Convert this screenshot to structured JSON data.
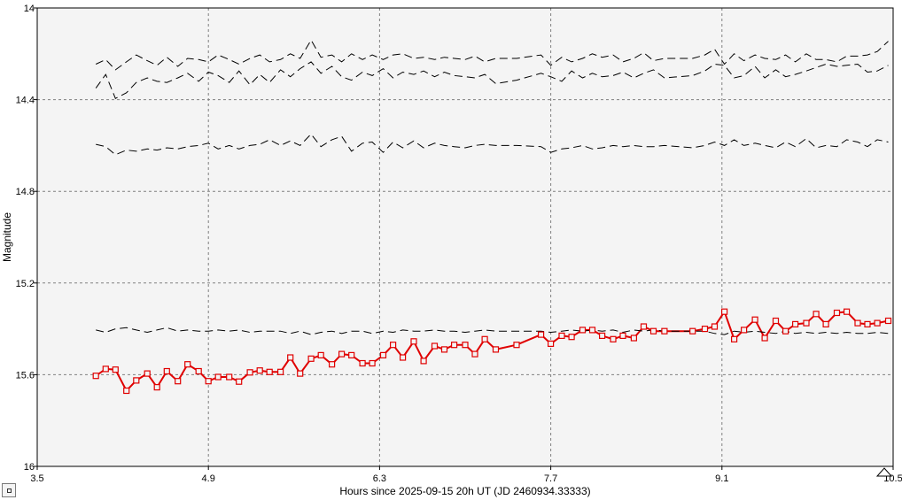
{
  "chart_data": {
    "type": "line",
    "xlabel": "Hours since 2025-09-15 20h UT (JD 2460934.33333)",
    "ylabel": "Magnitude",
    "xlim": [
      3.5,
      10.5
    ],
    "ylim": [
      16,
      14
    ],
    "y_inverted": true,
    "xticks": [
      "3.5",
      "4.9",
      "6.3",
      "7.7",
      "9.1",
      "10.5"
    ],
    "yticks": [
      "14",
      "14.4",
      "14.8",
      "15.2",
      "15.6",
      "16"
    ],
    "grid": true,
    "colors": {
      "target": "#e00000",
      "comparison": "#000000",
      "plot_background": "#f4f4f4",
      "grid": "#808080"
    },
    "series": [
      {
        "role": "target",
        "style": "solid-line-square-markers",
        "x": [
          3.98,
          4.06,
          4.14,
          4.23,
          4.31,
          4.4,
          4.48,
          4.56,
          4.65,
          4.73,
          4.82,
          4.9,
          4.98,
          5.07,
          5.15,
          5.24,
          5.32,
          5.4,
          5.49,
          5.57,
          5.65,
          5.74,
          5.82,
          5.91,
          5.99,
          6.07,
          6.16,
          6.24,
          6.33,
          6.41,
          6.49,
          6.58,
          6.66,
          6.75,
          6.83,
          6.91,
          7.0,
          7.08,
          7.16,
          7.25,
          7.42,
          7.62,
          7.7,
          7.79,
          7.87,
          7.96,
          8.04,
          8.12,
          8.21,
          8.29,
          8.38,
          8.46,
          8.54,
          8.63,
          8.86,
          8.96,
          9.04,
          9.12,
          9.2,
          9.28,
          9.37,
          9.45,
          9.54,
          9.62,
          9.7,
          9.79,
          9.87,
          9.95,
          10.04,
          10.12,
          10.21,
          10.29,
          10.37,
          10.46
        ],
        "y": [
          15.605,
          15.575,
          15.578,
          15.67,
          15.625,
          15.595,
          15.655,
          15.585,
          15.628,
          15.555,
          15.585,
          15.628,
          15.61,
          15.61,
          15.63,
          15.59,
          15.582,
          15.588,
          15.588,
          15.525,
          15.595,
          15.53,
          15.515,
          15.555,
          15.51,
          15.515,
          15.55,
          15.55,
          15.515,
          15.47,
          15.525,
          15.455,
          15.54,
          15.475,
          15.49,
          15.47,
          15.47,
          15.51,
          15.445,
          15.49,
          15.47,
          15.425,
          15.465,
          15.43,
          15.435,
          15.405,
          15.405,
          15.43,
          15.445,
          15.43,
          15.44,
          15.39,
          15.41,
          15.41,
          15.41,
          15.4,
          15.39,
          15.325,
          15.445,
          15.405,
          15.36,
          15.44,
          15.365,
          15.41,
          15.38,
          15.375,
          15.335,
          15.38,
          15.33,
          15.325,
          15.375,
          15.38,
          15.375,
          15.365
        ]
      },
      {
        "role": "comparison",
        "style": "dashed",
        "x": [
          3.98,
          4.06,
          4.14,
          4.23,
          4.31,
          4.4,
          4.48,
          4.56,
          4.65,
          4.73,
          4.82,
          4.9,
          4.98,
          5.07,
          5.15,
          5.24,
          5.32,
          5.4,
          5.49,
          5.57,
          5.65,
          5.74,
          5.82,
          5.91,
          5.99,
          6.07,
          6.16,
          6.24,
          6.33,
          6.41,
          6.49,
          6.58,
          6.66,
          6.75,
          6.83,
          6.91,
          7.0,
          7.08,
          7.16,
          7.25,
          7.42,
          7.62,
          7.7,
          7.79,
          7.87,
          7.96,
          8.04,
          8.12,
          8.21,
          8.29,
          8.38,
          8.46,
          8.54,
          8.63,
          8.86,
          8.96,
          9.04,
          9.12,
          9.2,
          9.28,
          9.37,
          9.45,
          9.54,
          9.62,
          9.7,
          9.79,
          9.87,
          9.95,
          10.04,
          10.12,
          10.21,
          10.29,
          10.37,
          10.46
        ],
        "y": [
          14.245,
          14.225,
          14.27,
          14.235,
          14.205,
          14.23,
          14.25,
          14.215,
          14.255,
          14.22,
          14.225,
          14.235,
          14.205,
          14.225,
          14.245,
          14.22,
          14.205,
          14.235,
          14.225,
          14.2,
          14.22,
          14.14,
          14.215,
          14.205,
          14.235,
          14.2,
          14.225,
          14.205,
          14.225,
          14.205,
          14.2,
          14.22,
          14.215,
          14.225,
          14.215,
          14.22,
          14.225,
          14.21,
          14.235,
          14.22,
          14.22,
          14.205,
          14.25,
          14.215,
          14.235,
          14.22,
          14.2,
          14.215,
          14.205,
          14.235,
          14.22,
          14.195,
          14.23,
          14.22,
          14.22,
          14.205,
          14.18,
          14.245,
          14.2,
          14.23,
          14.205,
          14.22,
          14.225,
          14.205,
          14.235,
          14.2,
          14.225,
          14.225,
          14.235,
          14.21,
          14.21,
          14.205,
          14.19,
          14.145
        ]
      },
      {
        "role": "comparison",
        "style": "dashed",
        "x": [
          3.98,
          4.06,
          4.14,
          4.23,
          4.31,
          4.4,
          4.48,
          4.56,
          4.65,
          4.73,
          4.82,
          4.9,
          4.98,
          5.07,
          5.15,
          5.24,
          5.32,
          5.4,
          5.49,
          5.57,
          5.65,
          5.74,
          5.82,
          5.91,
          5.99,
          6.07,
          6.16,
          6.24,
          6.33,
          6.41,
          6.49,
          6.58,
          6.66,
          6.75,
          6.83,
          6.91,
          7.0,
          7.08,
          7.16,
          7.25,
          7.42,
          7.62,
          7.7,
          7.79,
          7.87,
          7.96,
          8.04,
          8.12,
          8.21,
          8.29,
          8.38,
          8.46,
          8.54,
          8.63,
          8.86,
          8.96,
          9.04,
          9.12,
          9.2,
          9.28,
          9.37,
          9.45,
          9.54,
          9.62,
          9.7,
          9.79,
          9.87,
          9.95,
          10.04,
          10.12,
          10.21,
          10.29,
          10.37,
          10.46
        ],
        "y": [
          14.35,
          14.29,
          14.395,
          14.37,
          14.325,
          14.305,
          14.32,
          14.325,
          14.305,
          14.285,
          14.32,
          14.28,
          14.295,
          14.325,
          14.275,
          14.335,
          14.29,
          14.325,
          14.27,
          14.3,
          14.265,
          14.235,
          14.285,
          14.255,
          14.3,
          14.315,
          14.28,
          14.295,
          14.265,
          14.305,
          14.28,
          14.29,
          14.275,
          14.3,
          14.28,
          14.295,
          14.3,
          14.305,
          14.29,
          14.33,
          14.315,
          14.285,
          14.3,
          14.32,
          14.275,
          14.305,
          14.285,
          14.3,
          14.295,
          14.28,
          14.305,
          14.285,
          14.27,
          14.305,
          14.295,
          14.275,
          14.245,
          14.25,
          14.305,
          14.295,
          14.255,
          14.305,
          14.27,
          14.3,
          14.29,
          14.275,
          14.26,
          14.245,
          14.255,
          14.25,
          14.245,
          14.28,
          14.275,
          14.25
        ]
      },
      {
        "role": "comparison",
        "style": "dashed",
        "x": [
          3.98,
          4.06,
          4.14,
          4.23,
          4.31,
          4.4,
          4.48,
          4.56,
          4.65,
          4.73,
          4.82,
          4.9,
          4.98,
          5.07,
          5.15,
          5.24,
          5.32,
          5.4,
          5.49,
          5.57,
          5.65,
          5.74,
          5.82,
          5.91,
          5.99,
          6.07,
          6.16,
          6.24,
          6.33,
          6.41,
          6.49,
          6.58,
          6.66,
          6.75,
          6.83,
          6.91,
          7.0,
          7.08,
          7.16,
          7.25,
          7.42,
          7.62,
          7.7,
          7.79,
          7.87,
          7.96,
          8.04,
          8.12,
          8.21,
          8.29,
          8.38,
          8.46,
          8.54,
          8.63,
          8.86,
          8.96,
          9.04,
          9.12,
          9.2,
          9.28,
          9.37,
          9.45,
          9.54,
          9.62,
          9.7,
          9.79,
          9.87,
          9.95,
          10.04,
          10.12,
          10.21,
          10.29,
          10.37,
          10.46
        ],
        "y": [
          14.595,
          14.605,
          14.64,
          14.62,
          14.625,
          14.615,
          14.62,
          14.61,
          14.615,
          14.605,
          14.6,
          14.59,
          14.615,
          14.6,
          14.615,
          14.6,
          14.595,
          14.575,
          14.6,
          14.58,
          14.6,
          14.55,
          14.605,
          14.575,
          14.56,
          14.625,
          14.59,
          14.585,
          14.63,
          14.585,
          14.61,
          14.58,
          14.61,
          14.59,
          14.6,
          14.605,
          14.61,
          14.6,
          14.595,
          14.6,
          14.6,
          14.605,
          14.63,
          14.615,
          14.61,
          14.6,
          14.615,
          14.61,
          14.6,
          14.605,
          14.6,
          14.605,
          14.605,
          14.6,
          14.61,
          14.6,
          14.585,
          14.6,
          14.575,
          14.6,
          14.59,
          14.6,
          14.61,
          14.585,
          14.605,
          14.57,
          14.61,
          14.6,
          14.605,
          14.575,
          14.585,
          14.605,
          14.575,
          14.585
        ]
      },
      {
        "role": "comparison",
        "style": "dashed",
        "x": [
          3.98,
          4.06,
          4.14,
          4.23,
          4.31,
          4.4,
          4.48,
          4.56,
          4.65,
          4.73,
          4.82,
          4.9,
          4.98,
          5.07,
          5.15,
          5.24,
          5.32,
          5.4,
          5.49,
          5.57,
          5.65,
          5.74,
          5.82,
          5.91,
          5.99,
          6.07,
          6.16,
          6.24,
          6.33,
          6.41,
          6.49,
          6.58,
          6.66,
          6.75,
          6.83,
          6.91,
          7.0,
          7.08,
          7.16,
          7.25,
          7.42,
          7.62,
          7.7,
          7.79,
          7.87,
          7.96,
          8.04,
          8.12,
          8.21,
          8.29,
          8.38,
          8.46,
          8.54,
          8.63,
          8.86,
          8.96,
          9.04,
          9.12,
          9.2,
          9.28,
          9.37,
          9.45,
          9.54,
          9.62,
          9.7,
          9.79,
          9.87,
          9.95,
          10.04,
          10.12,
          10.21,
          10.29,
          10.37,
          10.46
        ],
        "y": [
          15.405,
          15.415,
          15.4,
          15.395,
          15.405,
          15.415,
          15.405,
          15.395,
          15.41,
          15.405,
          15.41,
          15.41,
          15.405,
          15.41,
          15.405,
          15.415,
          15.41,
          15.41,
          15.41,
          15.42,
          15.41,
          15.425,
          15.415,
          15.41,
          15.42,
          15.41,
          15.41,
          15.42,
          15.41,
          15.415,
          15.405,
          15.41,
          15.41,
          15.405,
          15.41,
          15.41,
          15.415,
          15.41,
          15.405,
          15.41,
          15.41,
          15.41,
          15.415,
          15.41,
          15.405,
          15.41,
          15.405,
          15.41,
          15.405,
          15.415,
          15.405,
          15.41,
          15.405,
          15.41,
          15.41,
          15.41,
          15.42,
          15.425,
          15.41,
          15.415,
          15.41,
          15.415,
          15.42,
          15.41,
          15.42,
          15.415,
          15.42,
          15.415,
          15.42,
          15.415,
          15.42,
          15.42,
          15.415,
          15.42
        ]
      }
    ]
  }
}
